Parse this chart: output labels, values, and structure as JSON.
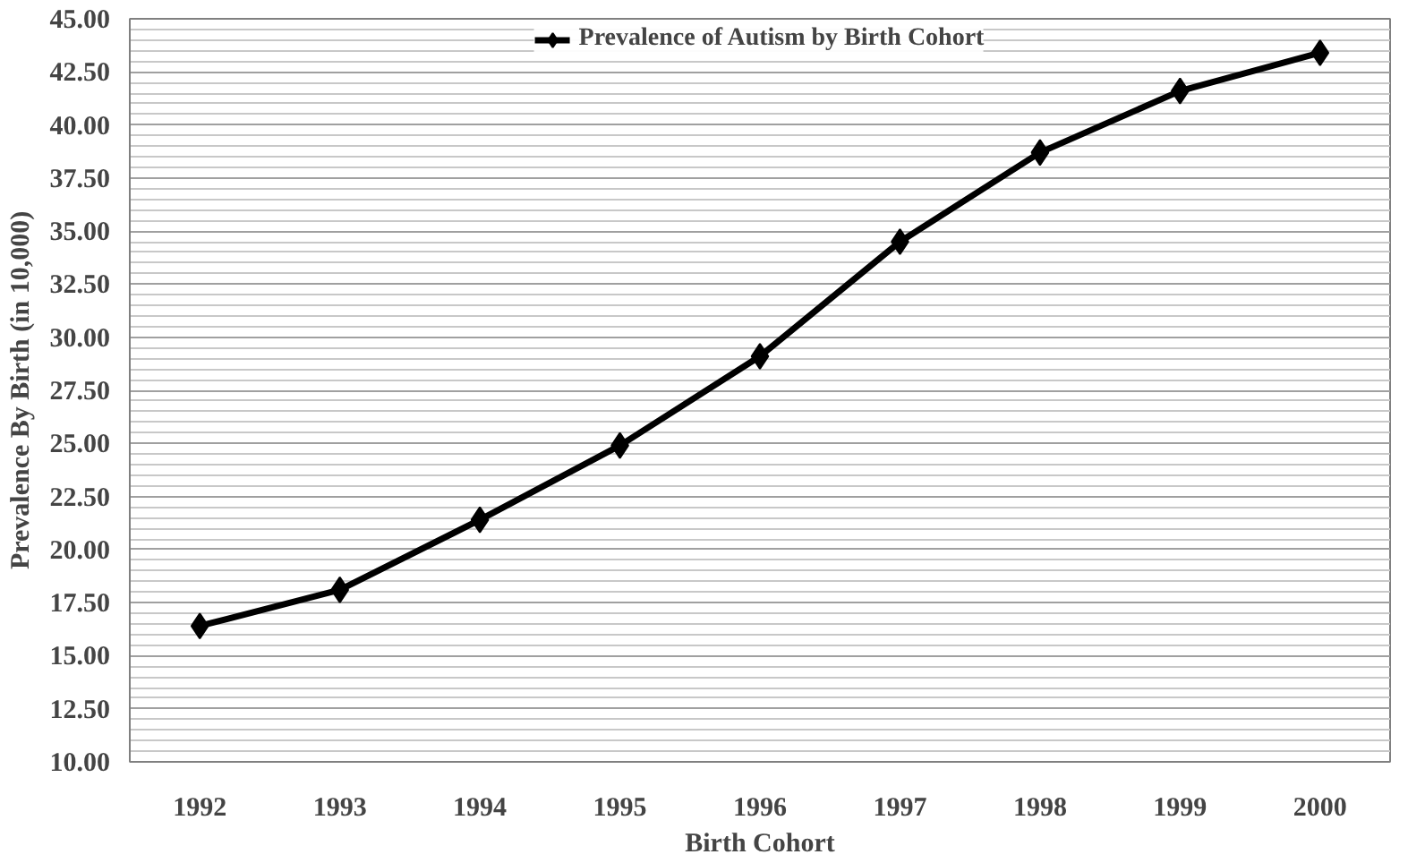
{
  "chart_data": {
    "type": "line",
    "xlabel": "Birth Cohort",
    "ylabel": "Prevalence By Birth (in 10,000)",
    "categories": [
      "1992",
      "1993",
      "1994",
      "1995",
      "1996",
      "1997",
      "1998",
      "1999",
      "2000"
    ],
    "series": [
      {
        "name": "Prevalence of Autism by Birth Cohort",
        "color": "#000000",
        "values": [
          16.4,
          18.1,
          21.4,
          24.9,
          29.1,
          34.5,
          38.7,
          41.6,
          43.4
        ]
      }
    ],
    "ylim": [
      10,
      45
    ],
    "yticks": [
      {
        "value": 10,
        "label": "10.00"
      },
      {
        "value": 12.5,
        "label": "12.50"
      },
      {
        "value": 15,
        "label": "15.00"
      },
      {
        "value": 17.5,
        "label": "17.50"
      },
      {
        "value": 20,
        "label": "20.00"
      },
      {
        "value": 22.5,
        "label": "22.50"
      },
      {
        "value": 25,
        "label": "25.00"
      },
      {
        "value": 27.5,
        "label": "27.50"
      },
      {
        "value": 30,
        "label": "30.00"
      },
      {
        "value": 32.5,
        "label": "32.50"
      },
      {
        "value": 35,
        "label": "35.00"
      },
      {
        "value": 37.5,
        "label": "37.50"
      },
      {
        "value": 40,
        "label": "40.00"
      },
      {
        "value": 42.5,
        "label": "42.50"
      },
      {
        "value": 45,
        "label": "45.00"
      }
    ],
    "grid": "y",
    "legend": "top",
    "marker": "diamond",
    "line_style": "solid"
  }
}
